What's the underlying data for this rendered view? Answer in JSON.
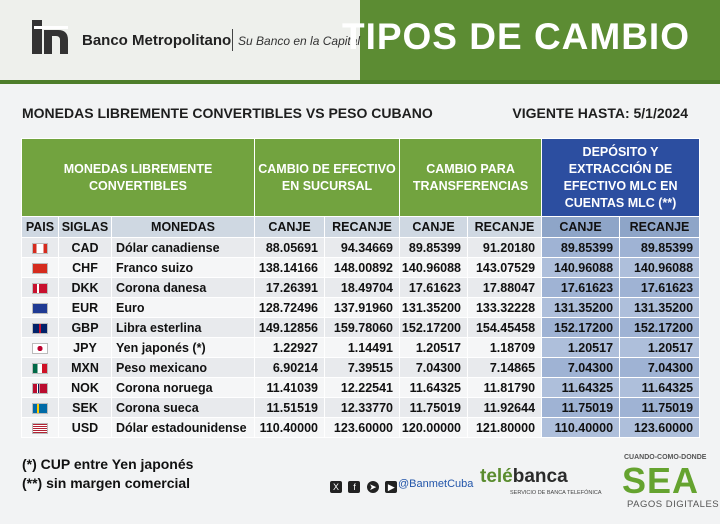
{
  "header": {
    "bank_name": "Banco Metropolitano",
    "slogan": "Su Banco en la Capital",
    "title": "TIPOS DE CAMBIO",
    "brand_color": "#5c8c33"
  },
  "subtitle": "MONEDAS LIBREMENTE CONVERTIBLES VS PESO CUBANO",
  "vigente": "VIGENTE HASTA: 5/1/2024",
  "table": {
    "group_headers": {
      "monedas": "MONEDAS LIBREMENTE CONVERTIBLES",
      "efectivo": "CAMBIO DE EFECTIVO EN SUCURSAL",
      "transferencias": "CAMBIO PARA TRANSFERENCIAS",
      "deposito": "DEPÓSITO Y EXTRACCIÓN DE EFECTIVO MLC EN CUENTAS MLC (**)"
    },
    "columns": {
      "pais": "PAIS",
      "siglas": "SIGLAS",
      "monedas": "MONEDAS",
      "canje": "CANJE",
      "recanje": "RECANJE"
    },
    "rows": [
      {
        "flag": "ca-flag",
        "siglas": "CAD",
        "moneda": "Dólar canadiense",
        "ef_canje": "88.05691",
        "ef_recanje": "94.34669",
        "tr_canje": "89.85399",
        "tr_recanje": "91.20180",
        "dep_canje": "89.85399",
        "dep_recanje": "89.85399"
      },
      {
        "flag": "ch-flag",
        "siglas": "CHF",
        "moneda": "Franco suizo",
        "ef_canje": "138.14166",
        "ef_recanje": "148.00892",
        "tr_canje": "140.96088",
        "tr_recanje": "143.07529",
        "dep_canje": "140.96088",
        "dep_recanje": "140.96088"
      },
      {
        "flag": "dk-flag",
        "siglas": "DKK",
        "moneda": "Corona danesa",
        "ef_canje": "17.26391",
        "ef_recanje": "18.49704",
        "tr_canje": "17.61623",
        "tr_recanje": "17.88047",
        "dep_canje": "17.61623",
        "dep_recanje": "17.61623"
      },
      {
        "flag": "eu-flag",
        "siglas": "EUR",
        "moneda": "Euro",
        "ef_canje": "128.72496",
        "ef_recanje": "137.91960",
        "tr_canje": "131.35200",
        "tr_recanje": "133.32228",
        "dep_canje": "131.35200",
        "dep_recanje": "131.35200"
      },
      {
        "flag": "gb-flag",
        "siglas": "GBP",
        "moneda": "Libra esterlina",
        "ef_canje": "149.12856",
        "ef_recanje": "159.78060",
        "tr_canje": "152.17200",
        "tr_recanje": "154.45458",
        "dep_canje": "152.17200",
        "dep_recanje": "152.17200"
      },
      {
        "flag": "jp-flag",
        "siglas": "JPY",
        "moneda": "Yen japonés (*)",
        "ef_canje": "1.22927",
        "ef_recanje": "1.14491",
        "tr_canje": "1.20517",
        "tr_recanje": "1.18709",
        "dep_canje": "1.20517",
        "dep_recanje": "1.20517"
      },
      {
        "flag": "mx-flag",
        "siglas": "MXN",
        "moneda": "Peso mexicano",
        "ef_canje": "6.90214",
        "ef_recanje": "7.39515",
        "tr_canje": "7.04300",
        "tr_recanje": "7.14865",
        "dep_canje": "7.04300",
        "dep_recanje": "7.04300"
      },
      {
        "flag": "no-flag",
        "siglas": "NOK",
        "moneda": "Corona noruega",
        "ef_canje": "11.41039",
        "ef_recanje": "12.22541",
        "tr_canje": "11.64325",
        "tr_recanje": "11.81790",
        "dep_canje": "11.64325",
        "dep_recanje": "11.64325"
      },
      {
        "flag": "se-flag",
        "siglas": "SEK",
        "moneda": "Corona sueca",
        "ef_canje": "11.51519",
        "ef_recanje": "12.33770",
        "tr_canje": "11.75019",
        "tr_recanje": "11.92644",
        "dep_canje": "11.75019",
        "dep_recanje": "11.75019"
      },
      {
        "flag": "us-flag",
        "siglas": "USD",
        "moneda": "Dólar estadounidense",
        "ef_canje": "110.40000",
        "ef_recanje": "123.60000",
        "tr_canje": "120.00000",
        "tr_recanje": "121.80000",
        "dep_canje": "110.40000",
        "dep_recanje": "123.60000"
      }
    ]
  },
  "notes": {
    "note1": "(*) CUP entre Yen japonés",
    "note2": "(**) sin margen comercial"
  },
  "social": {
    "icons": [
      "x-icon",
      "facebook-icon",
      "telegram-icon",
      "youtube-icon"
    ],
    "handle": "@BanmetCuba"
  },
  "telebanca": {
    "tele": "telé",
    "banca": "banca",
    "sub": "SERVICIO DE BANCA TELEFÓNICA"
  },
  "sea": {
    "top": "CUANDO-COMO-DONDE",
    "name": "SEA",
    "sub": "PAGOS DIGITALES"
  }
}
